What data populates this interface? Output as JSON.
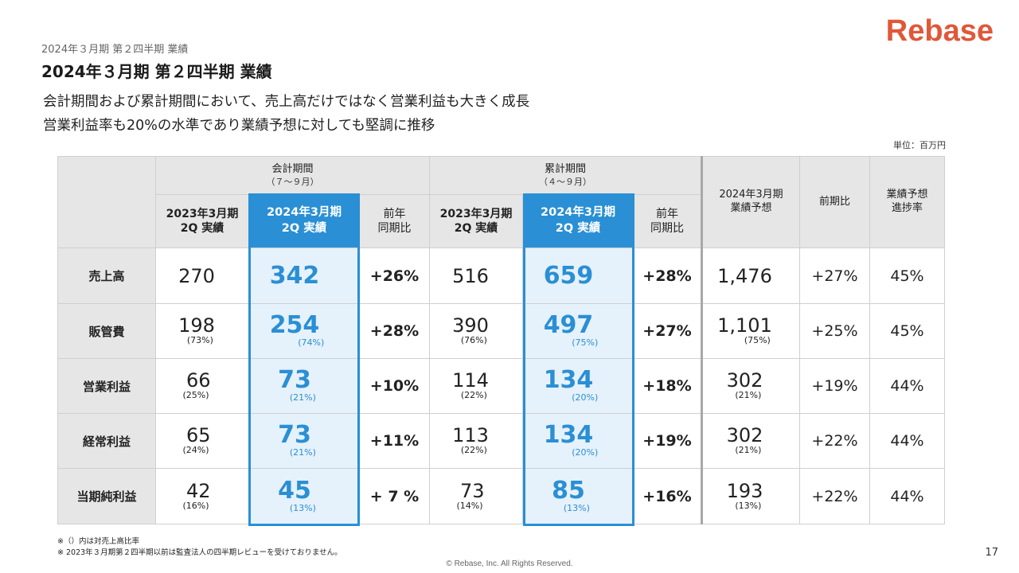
{
  "header": {
    "small_title": "2024年３月期 第２四半期 業績",
    "title": "2024年３月期 第２四半期 業績",
    "logo": "Rebase",
    "subtitle_line1": "会計期間および累計期間において、売上高だけではなく営業利益も大きく成長",
    "subtitle_line2": "営業利益率も20%の水準であり業績予想に対しても堅調に推移",
    "unit": "単位：百万円"
  },
  "table": {
    "group_quarter": {
      "label": "会計期間",
      "sub": "（７〜９月）"
    },
    "group_cumulative": {
      "label": "累計期間",
      "sub": "（４〜９月）"
    },
    "col_prev_line1": "2023年3月期",
    "col_prev_line2": "2Q 実績",
    "col_curr_line1": "2024年3月期",
    "col_curr_line2": "2Q 実績",
    "col_yoy_line1": "前年",
    "col_yoy_line2": "同期比",
    "col_forecast_line1": "2024年3月期",
    "col_forecast_line2": "業績予想",
    "col_vs_prev": "前期比",
    "col_progress_line1": "業績予想",
    "col_progress_line2": "進捗率",
    "rows": [
      {
        "label": "売上高",
        "q_prev": "270",
        "q_prev_pct": "",
        "q_curr": "342",
        "q_curr_pct": "",
        "q_yoy": "+26%",
        "c_prev": "516",
        "c_prev_pct": "",
        "c_curr": "659",
        "c_curr_pct": "",
        "c_yoy": "+28%",
        "forecast": "1,476",
        "forecast_pct": "",
        "vs_prev": "+27%",
        "progress": "45%"
      },
      {
        "label": "販管費",
        "q_prev": "198",
        "q_prev_pct": "(73%)",
        "q_curr": "254",
        "q_curr_pct": "(74%)",
        "q_yoy": "+28%",
        "c_prev": "390",
        "c_prev_pct": "(76%)",
        "c_curr": "497",
        "c_curr_pct": "(75%)",
        "c_yoy": "+27%",
        "forecast": "1,101",
        "forecast_pct": "(75%)",
        "vs_prev": "+25%",
        "progress": "45%"
      },
      {
        "label": "営業利益",
        "q_prev": "66",
        "q_prev_pct": "(25%)",
        "q_curr": "73",
        "q_curr_pct": "(21%)",
        "q_yoy": "+10%",
        "c_prev": "114",
        "c_prev_pct": "(22%)",
        "c_curr": "134",
        "c_curr_pct": "(20%)",
        "c_yoy": "+18%",
        "forecast": "302",
        "forecast_pct": "(21%)",
        "vs_prev": "+19%",
        "progress": "44%"
      },
      {
        "label": "経常利益",
        "q_prev": "65",
        "q_prev_pct": "(24%)",
        "q_curr": "73",
        "q_curr_pct": "(21%)",
        "q_yoy": "+11%",
        "c_prev": "113",
        "c_prev_pct": "(22%)",
        "c_curr": "134",
        "c_curr_pct": "(20%)",
        "c_yoy": "+19%",
        "forecast": "302",
        "forecast_pct": "(21%)",
        "vs_prev": "+22%",
        "progress": "44%"
      },
      {
        "label": "当期純利益",
        "q_prev": "42",
        "q_prev_pct": "(16%)",
        "q_curr": "45",
        "q_curr_pct": "(13%)",
        "q_yoy": "+ 7 %",
        "c_prev": "73",
        "c_prev_pct": "(14%)",
        "c_curr": "85",
        "c_curr_pct": "(13%)",
        "c_yoy": "+16%",
        "forecast": "193",
        "forecast_pct": "(13%)",
        "vs_prev": "+22%",
        "progress": "44%"
      }
    ]
  },
  "footer": {
    "note1": "※（）内は対売上高比率",
    "note2": "※ 2023年３月期第２四半期以前は監査法人の四半期レビューを受けておりません。",
    "copyright": "© Rebase, Inc. All Rights Reserved.",
    "page_number": "17"
  },
  "colors": {
    "accent": "#2a8fd4",
    "logo": "#e0573a",
    "header_bg": "#e6e6e6",
    "highlight_bg": "#e5f1fb"
  }
}
